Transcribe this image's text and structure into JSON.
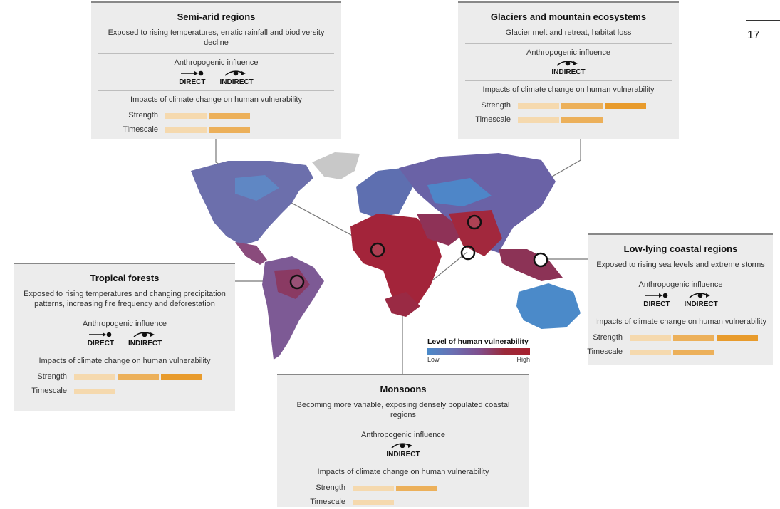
{
  "page_number": "17",
  "legend": {
    "title": "Level of human vulnerability",
    "low": "Low",
    "high": "High",
    "low_color": "#4b8ac9",
    "high_color": "#a8202e"
  },
  "common": {
    "influence_label": "Anthropogenic influence",
    "direct": "DIRECT",
    "indirect": "INDIRECT",
    "impacts_label": "Impacts of climate change on human vulnerability",
    "strength": "Strength",
    "timescale": "Timescale"
  },
  "panels": {
    "semi_arid": {
      "title": "Semi-arid regions",
      "desc": "Exposed to rising temperatures, erratic rainfall and biodiversity decline",
      "influence": [
        "direct",
        "indirect"
      ],
      "strength": 2,
      "timescale": 2
    },
    "glaciers": {
      "title": "Glaciers and mountain ecosystems",
      "desc": "Glacier melt and retreat, habitat loss",
      "influence": [
        "indirect"
      ],
      "strength": 3,
      "timescale": 2
    },
    "tropical": {
      "title": "Tropical forests",
      "desc": "Exposed to rising temperatures and changing precipitation patterns, increasing fire frequency and deforestation",
      "influence": [
        "direct",
        "indirect"
      ],
      "strength": 3,
      "timescale": 1
    },
    "coastal": {
      "title": "Low-lying coastal regions",
      "desc": "Exposed to rising sea levels and extreme storms",
      "influence": [
        "direct",
        "indirect"
      ],
      "strength": 3,
      "timescale": 2
    },
    "monsoons": {
      "title": "Monsoons",
      "desc": "Becoming more variable, exposing densely populated coastal regions",
      "influence": [
        "indirect"
      ],
      "strength": 2,
      "timescale": 1
    }
  }
}
